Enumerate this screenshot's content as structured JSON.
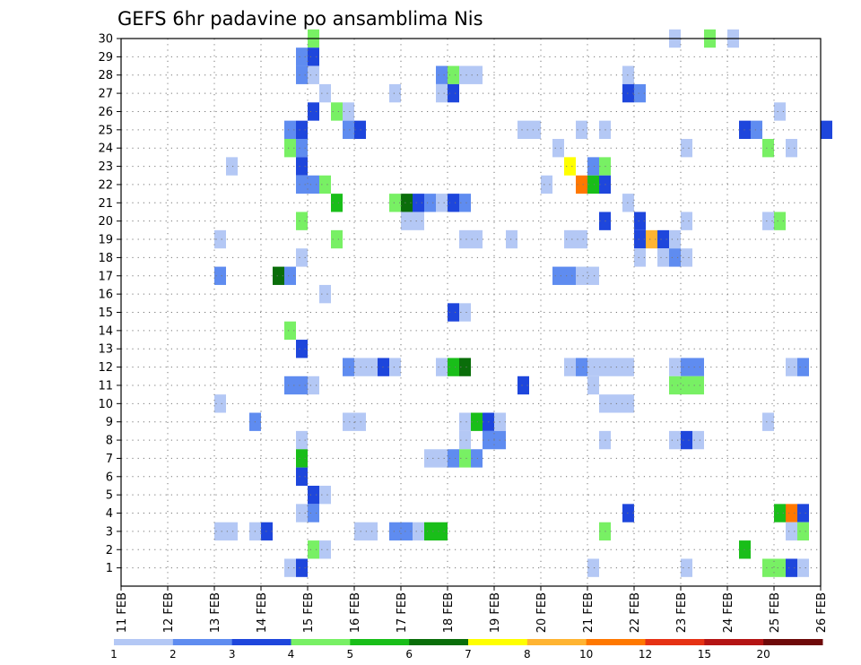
{
  "chart_data": {
    "type": "heatmap",
    "title": "GEFS 6hr padavine po ansamblima Nis",
    "x_ticks": [
      "11 FEB",
      "12 FEB",
      "13 FEB",
      "14 FEB",
      "15 FEB",
      "16 FEB",
      "17 FEB",
      "18 FEB",
      "19 FEB",
      "20 FEB",
      "21 FEB",
      "22 FEB",
      "23 FEB",
      "24 FEB",
      "25 FEB",
      "26 FEB"
    ],
    "y_ticks": [
      "1",
      "2",
      "3",
      "4",
      "5",
      "6",
      "7",
      "8",
      "9",
      "10",
      "11",
      "12",
      "13",
      "14",
      "15",
      "16",
      "17",
      "18",
      "19",
      "20",
      "21",
      "22",
      "23",
      "24",
      "25",
      "26",
      "27",
      "28",
      "29",
      "30"
    ],
    "y_range": [
      0,
      30
    ],
    "grid": true,
    "color_levels": [
      "1",
      "2",
      "3",
      "4",
      "5",
      "6",
      "7",
      "8",
      "10",
      "12",
      "15",
      "20"
    ],
    "colors": [
      "#b4c8f5",
      "#5f8cf0",
      "#1e46dc",
      "#78f064",
      "#19be19",
      "#0a6e0a",
      "#ffff00",
      "#ffb432",
      "#ff7800",
      "#e63214",
      "#b41414",
      "#6e0a0a"
    ],
    "notes": "cells: [member (y), x time index in 6-hourly steps from 11 FEB 00Z, color class 1-12]",
    "cells": [
      [
        30,
        16,
        4
      ],
      [
        30,
        47,
        1
      ],
      [
        30,
        50,
        4
      ],
      [
        30,
        52,
        1
      ],
      [
        29,
        15,
        2
      ],
      [
        29,
        16,
        3
      ],
      [
        28,
        15,
        2
      ],
      [
        28,
        16,
        1
      ],
      [
        28,
        27,
        2
      ],
      [
        28,
        28,
        4
      ],
      [
        28,
        29,
        1
      ],
      [
        28,
        30,
        1
      ],
      [
        28,
        43,
        1
      ],
      [
        27,
        17,
        1
      ],
      [
        27,
        23,
        1
      ],
      [
        27,
        27,
        1
      ],
      [
        27,
        28,
        3
      ],
      [
        27,
        43,
        3
      ],
      [
        27,
        44,
        2
      ],
      [
        26,
        16,
        3
      ],
      [
        26,
        18,
        4
      ],
      [
        26,
        19,
        1
      ],
      [
        26,
        56,
        1
      ],
      [
        25,
        14,
        2
      ],
      [
        25,
        15,
        3
      ],
      [
        25,
        19,
        2
      ],
      [
        25,
        20,
        3
      ],
      [
        25,
        34,
        1
      ],
      [
        25,
        35,
        1
      ],
      [
        25,
        39,
        1
      ],
      [
        25,
        41,
        1
      ],
      [
        25,
        53,
        3
      ],
      [
        25,
        54,
        2
      ],
      [
        25,
        60,
        3
      ],
      [
        24,
        14,
        4
      ],
      [
        24,
        15,
        2
      ],
      [
        24,
        37,
        1
      ],
      [
        24,
        48,
        1
      ],
      [
        24,
        55,
        4
      ],
      [
        24,
        57,
        1
      ],
      [
        23,
        9,
        1
      ],
      [
        23,
        15,
        3
      ],
      [
        23,
        38,
        7
      ],
      [
        23,
        40,
        2
      ],
      [
        23,
        41,
        4
      ],
      [
        22,
        15,
        2
      ],
      [
        22,
        16,
        2
      ],
      [
        22,
        17,
        4
      ],
      [
        22,
        36,
        1
      ],
      [
        22,
        39,
        9
      ],
      [
        22,
        40,
        5
      ],
      [
        22,
        41,
        3
      ],
      [
        21,
        18,
        5
      ],
      [
        21,
        23,
        4
      ],
      [
        21,
        24,
        6
      ],
      [
        21,
        25,
        3
      ],
      [
        21,
        26,
        2
      ],
      [
        21,
        27,
        1
      ],
      [
        21,
        28,
        3
      ],
      [
        21,
        29,
        2
      ],
      [
        21,
        43,
        1
      ],
      [
        20,
        15,
        4
      ],
      [
        20,
        24,
        1
      ],
      [
        20,
        25,
        1
      ],
      [
        20,
        41,
        3
      ],
      [
        20,
        44,
        3
      ],
      [
        20,
        48,
        1
      ],
      [
        20,
        55,
        1
      ],
      [
        20,
        56,
        4
      ],
      [
        19,
        8,
        1
      ],
      [
        19,
        18,
        4
      ],
      [
        19,
        29,
        1
      ],
      [
        19,
        30,
        1
      ],
      [
        19,
        33,
        1
      ],
      [
        19,
        38,
        1
      ],
      [
        19,
        39,
        1
      ],
      [
        19,
        44,
        3
      ],
      [
        19,
        45,
        8
      ],
      [
        19,
        46,
        3
      ],
      [
        19,
        47,
        1
      ],
      [
        18,
        15,
        1
      ],
      [
        18,
        44,
        1
      ],
      [
        18,
        46,
        1
      ],
      [
        18,
        47,
        2
      ],
      [
        18,
        48,
        1
      ],
      [
        17,
        8,
        2
      ],
      [
        17,
        13,
        6
      ],
      [
        17,
        14,
        2
      ],
      [
        17,
        37,
        2
      ],
      [
        17,
        38,
        2
      ],
      [
        17,
        39,
        1
      ],
      [
        17,
        40,
        1
      ],
      [
        16,
        17,
        1
      ],
      [
        15,
        28,
        3
      ],
      [
        15,
        29,
        1
      ],
      [
        14,
        14,
        4
      ],
      [
        13,
        15,
        3
      ],
      [
        12,
        19,
        2
      ],
      [
        12,
        20,
        1
      ],
      [
        12,
        21,
        1
      ],
      [
        12,
        22,
        3
      ],
      [
        12,
        23,
        1
      ],
      [
        12,
        27,
        1
      ],
      [
        12,
        28,
        5
      ],
      [
        12,
        29,
        6
      ],
      [
        12,
        38,
        1
      ],
      [
        12,
        39,
        2
      ],
      [
        12,
        40,
        1
      ],
      [
        12,
        41,
        1
      ],
      [
        12,
        42,
        1
      ],
      [
        12,
        43,
        1
      ],
      [
        12,
        47,
        1
      ],
      [
        12,
        48,
        2
      ],
      [
        12,
        49,
        2
      ],
      [
        12,
        57,
        1
      ],
      [
        12,
        58,
        2
      ],
      [
        11,
        14,
        2
      ],
      [
        11,
        15,
        2
      ],
      [
        11,
        16,
        1
      ],
      [
        11,
        34,
        3
      ],
      [
        11,
        40,
        1
      ],
      [
        11,
        47,
        4
      ],
      [
        11,
        48,
        4
      ],
      [
        11,
        49,
        4
      ],
      [
        10,
        8,
        1
      ],
      [
        10,
        41,
        1
      ],
      [
        10,
        42,
        1
      ],
      [
        10,
        43,
        1
      ],
      [
        9,
        11,
        2
      ],
      [
        9,
        19,
        1
      ],
      [
        9,
        20,
        1
      ],
      [
        9,
        29,
        1
      ],
      [
        9,
        30,
        5
      ],
      [
        9,
        31,
        3
      ],
      [
        9,
        32,
        1
      ],
      [
        9,
        55,
        1
      ],
      [
        8,
        15,
        1
      ],
      [
        8,
        29,
        1
      ],
      [
        8,
        31,
        2
      ],
      [
        8,
        32,
        2
      ],
      [
        8,
        41,
        1
      ],
      [
        8,
        47,
        1
      ],
      [
        8,
        48,
        3
      ],
      [
        8,
        49,
        1
      ],
      [
        7,
        15,
        5
      ],
      [
        7,
        26,
        1
      ],
      [
        7,
        27,
        1
      ],
      [
        7,
        28,
        2
      ],
      [
        7,
        29,
        4
      ],
      [
        7,
        30,
        2
      ],
      [
        6,
        15,
        3
      ],
      [
        5,
        16,
        3
      ],
      [
        5,
        17,
        1
      ],
      [
        4,
        15,
        1
      ],
      [
        4,
        16,
        2
      ],
      [
        4,
        43,
        3
      ],
      [
        4,
        56,
        5
      ],
      [
        4,
        57,
        9
      ],
      [
        4,
        58,
        3
      ],
      [
        3,
        8,
        1
      ],
      [
        3,
        9,
        1
      ],
      [
        3,
        11,
        1
      ],
      [
        3,
        12,
        3
      ],
      [
        3,
        20,
        1
      ],
      [
        3,
        21,
        1
      ],
      [
        3,
        23,
        2
      ],
      [
        3,
        24,
        2
      ],
      [
        3,
        25,
        1
      ],
      [
        3,
        26,
        5
      ],
      [
        3,
        27,
        5
      ],
      [
        3,
        41,
        4
      ],
      [
        3,
        57,
        1
      ],
      [
        3,
        58,
        4
      ],
      [
        2,
        16,
        4
      ],
      [
        2,
        17,
        1
      ],
      [
        2,
        53,
        5
      ],
      [
        1,
        14,
        1
      ],
      [
        1,
        15,
        3
      ],
      [
        1,
        40,
        1
      ],
      [
        1,
        48,
        1
      ],
      [
        1,
        55,
        4
      ],
      [
        1,
        56,
        4
      ],
      [
        1,
        57,
        3
      ],
      [
        1,
        58,
        1
      ]
    ]
  }
}
